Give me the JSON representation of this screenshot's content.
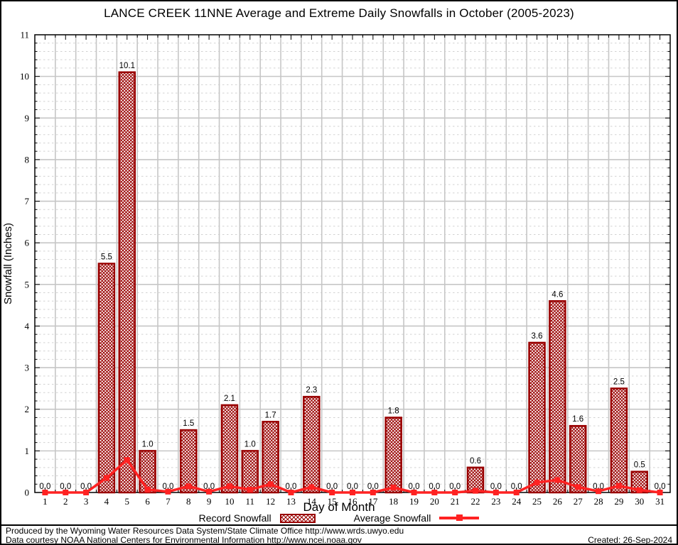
{
  "title": "LANCE CREEK 11NNE Average and Extreme Daily Snowfalls in October (2005-2023)",
  "chart_data": {
    "type": "bar",
    "title": "LANCE CREEK 11NNE Average and Extreme Daily Snowfalls in October (2005-2023)",
    "xlabel": "Day of Month",
    "ylabel": "Snowfall (Inches)",
    "ylim": [
      0,
      11
    ],
    "ytick_interval": 1,
    "ytick_minor_interval": 0.2,
    "grid": true,
    "legend_position": "bottom-center",
    "categories": [
      1,
      2,
      3,
      4,
      5,
      6,
      7,
      8,
      9,
      10,
      11,
      12,
      13,
      14,
      15,
      16,
      17,
      18,
      19,
      20,
      21,
      22,
      23,
      24,
      25,
      26,
      27,
      28,
      29,
      30,
      31
    ],
    "series": [
      {
        "name": "Record Snowfall",
        "type": "bar",
        "values": [
          0.0,
          0.0,
          0.0,
          5.5,
          10.1,
          1.0,
          0.0,
          1.5,
          0.0,
          2.1,
          1.0,
          1.7,
          0.0,
          2.3,
          0.0,
          0.0,
          0.0,
          1.8,
          0.0,
          0.0,
          0.0,
          0.6,
          0.0,
          0.0,
          3.6,
          4.6,
          1.6,
          0.0,
          2.5,
          0.5,
          0.0
        ],
        "value_labels_shown": true
      },
      {
        "name": "Average Snowfall",
        "type": "line",
        "values": [
          0.0,
          0.0,
          0.0,
          0.35,
          0.78,
          0.07,
          0.02,
          0.15,
          0.02,
          0.15,
          0.07,
          0.2,
          0.0,
          0.13,
          0.0,
          0.0,
          0.0,
          0.12,
          0.0,
          0.0,
          0.0,
          0.04,
          0.0,
          0.0,
          0.24,
          0.3,
          0.13,
          0.03,
          0.16,
          0.06,
          0.0
        ]
      }
    ]
  },
  "legend": {
    "record_label": "Record Snowfall",
    "average_label": "Average Snowfall"
  },
  "footer": {
    "line1": "Produced by the Wyoming Water Resources Data System/State Climate Office http://www.wrds.uwyo.edu",
    "line2": "Data courtesy NOAA National Centers for Environmental Information http://www.ncei.noaa.gov",
    "created": "Created: 26-Sep-2024"
  },
  "colors": {
    "bar_border": "#990000",
    "bar_hatch": "#990000",
    "average_line": "#ff2222",
    "grid_major": "#c6c6c6",
    "grid_minor": "#d2d2d2",
    "frame": "#000000",
    "text": "#000000",
    "background": "#ffffff"
  }
}
